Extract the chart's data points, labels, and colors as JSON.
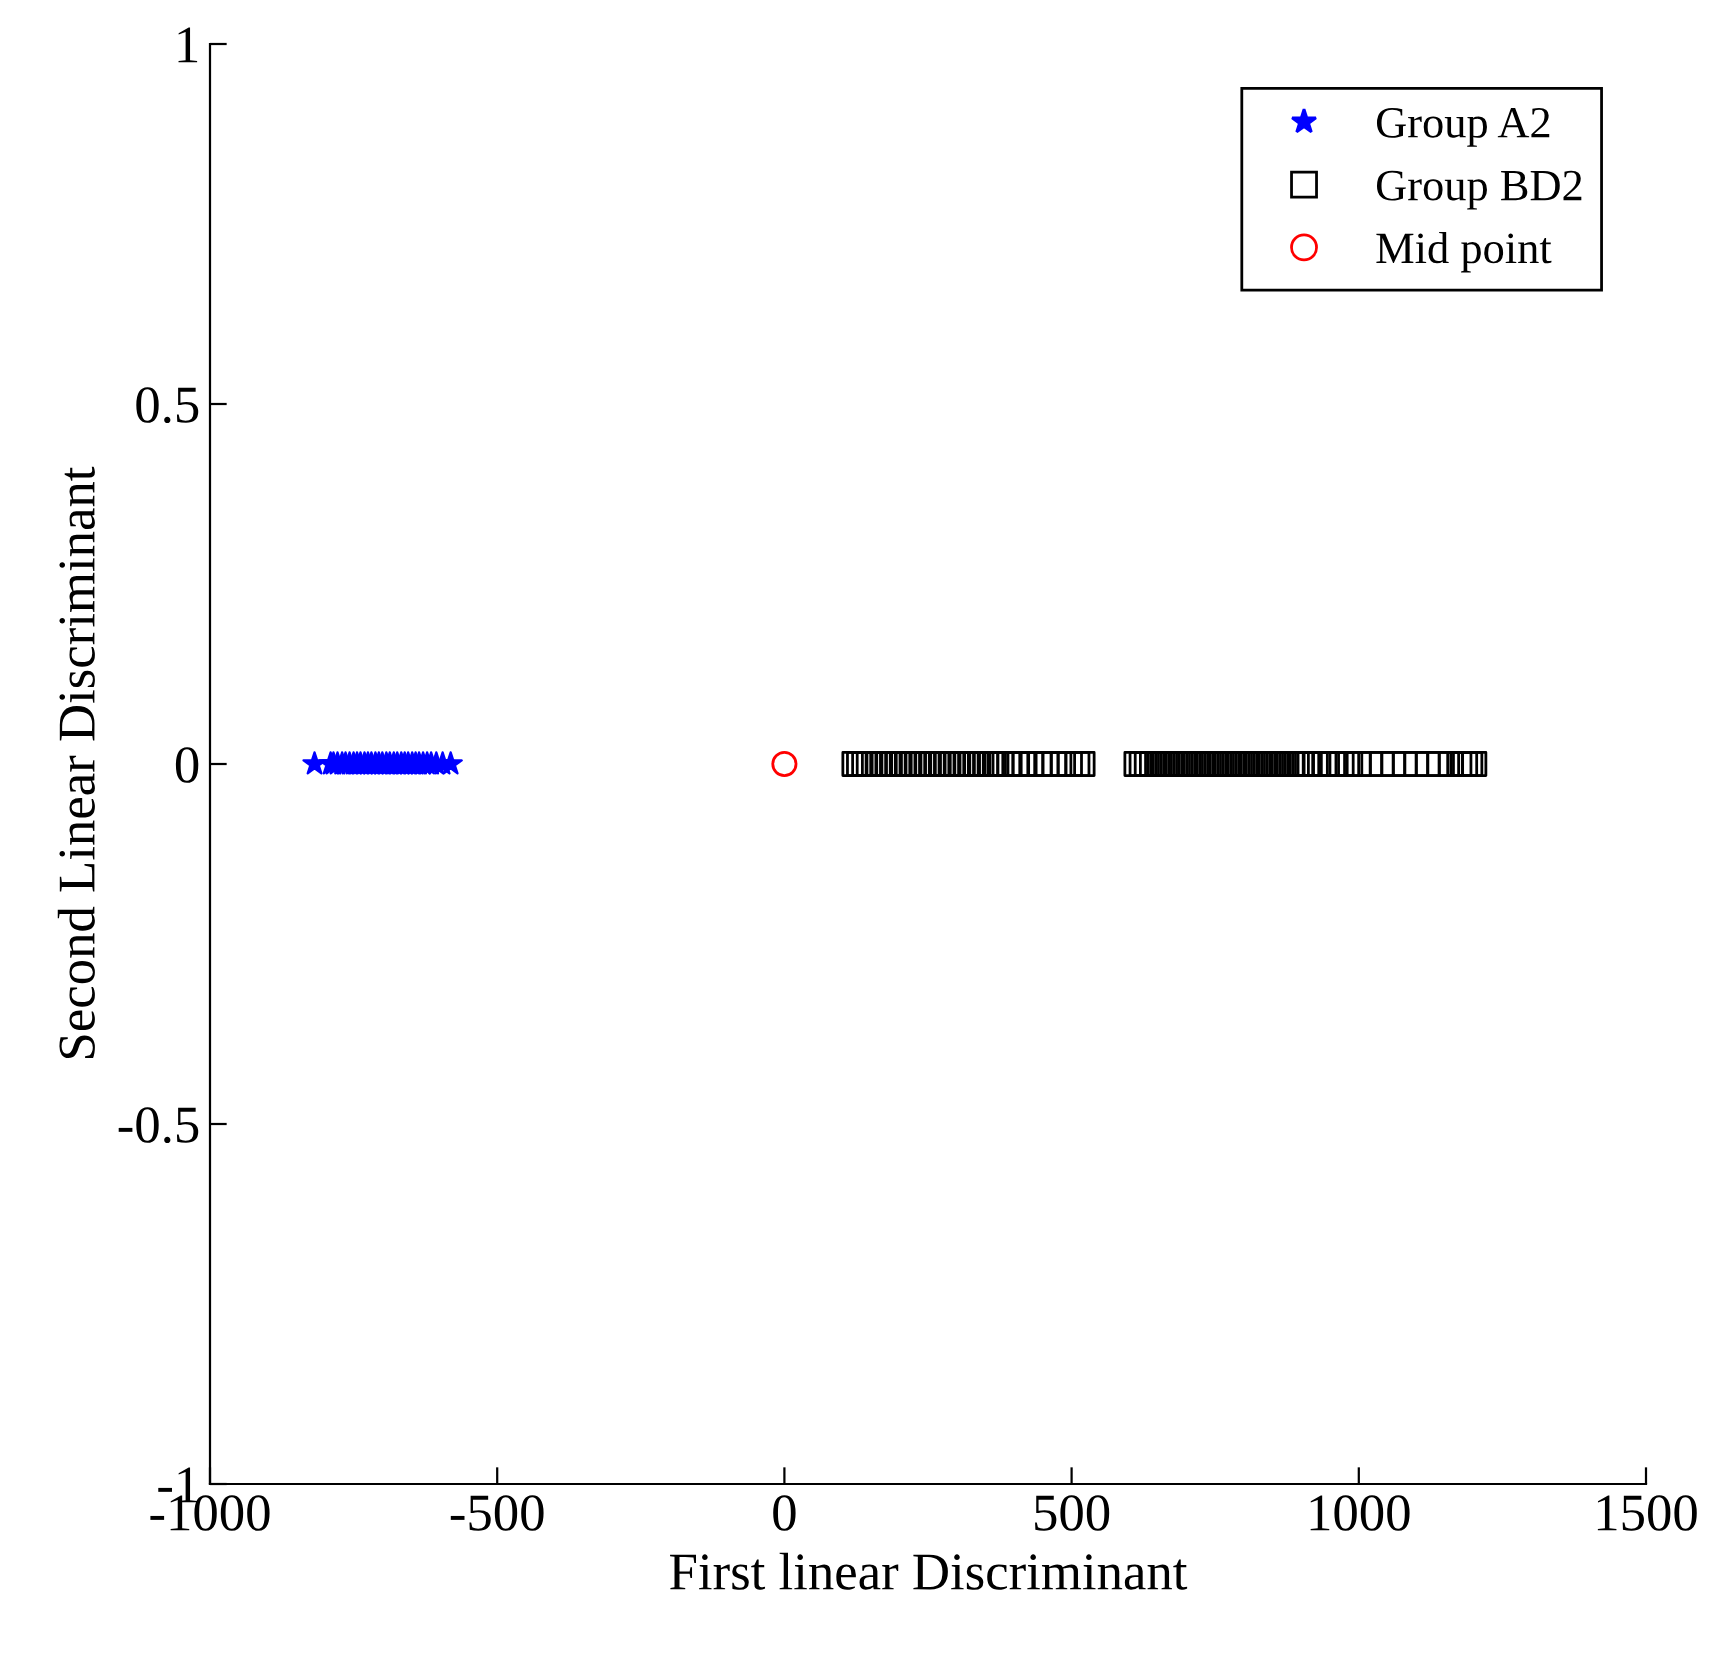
{
  "chart_data": {
    "type": "scatter",
    "xlabel": "First linear Discriminant",
    "ylabel": "Second Linear Discriminant",
    "xlim": [
      -1000,
      1500
    ],
    "xticks": [
      -1000,
      -500,
      0,
      500,
      1000,
      1500
    ],
    "ylim": [
      -1,
      1
    ],
    "yticks": [
      -1,
      -0.5,
      0,
      0.5,
      1
    ],
    "grid": false,
    "legend": "top right",
    "series": [
      {
        "name": "Group A2",
        "color": "#0000ff",
        "marker": "star",
        "x": [
          -818,
          -790,
          -785,
          -778,
          -770,
          -764,
          -757,
          -750,
          -744,
          -738,
          -731,
          -725,
          -719,
          -712,
          -706,
          -700,
          -693,
          -687,
          -680,
          -674,
          -667,
          -661,
          -655,
          -648,
          -642,
          -636,
          -629,
          -622,
          -615,
          -606,
          -595,
          -581
        ],
        "values": [
          0,
          0,
          0,
          0,
          0,
          0,
          0,
          0,
          0,
          0,
          0,
          0,
          0,
          0,
          0,
          0,
          0,
          0,
          0,
          0,
          0,
          0,
          0,
          0,
          0,
          0,
          0,
          0,
          0,
          0,
          0,
          0
        ]
      },
      {
        "name": "Group BD2",
        "color": "#000000",
        "marker": "square",
        "x": [
          122,
          130,
          139,
          147,
          156,
          164,
          173,
          181,
          190,
          198,
          207,
          215,
          224,
          232,
          241,
          249,
          258,
          266,
          275,
          283,
          292,
          300,
          309,
          317,
          326,
          334,
          343,
          351,
          360,
          369,
          378,
          392,
          405,
          418,
          430,
          444,
          456,
          470,
          485,
          497,
          510,
          519,
          613,
          622,
          631,
          640,
          649,
          658,
          667,
          676,
          685,
          694,
          703,
          712,
          721,
          730,
          739,
          748,
          757,
          766,
          775,
          784,
          793,
          802,
          811,
          820,
          829,
          838,
          847,
          856,
          865,
          874,
          883,
          892,
          901,
          910,
          925,
          940,
          955,
          970,
          985,
          1000,
          1020,
          1040,
          1060,
          1080,
          1100,
          1120,
          1140,
          1160,
          1175,
          1185,
          1194,
          1201
        ],
        "values": [
          0,
          0,
          0,
          0,
          0,
          0,
          0,
          0,
          0,
          0,
          0,
          0,
          0,
          0,
          0,
          0,
          0,
          0,
          0,
          0,
          0,
          0,
          0,
          0,
          0,
          0,
          0,
          0,
          0,
          0,
          0,
          0,
          0,
          0,
          0,
          0,
          0,
          0,
          0,
          0,
          0,
          0,
          0,
          0,
          0,
          0,
          0,
          0,
          0,
          0,
          0,
          0,
          0,
          0,
          0,
          0,
          0,
          0,
          0,
          0,
          0,
          0,
          0,
          0,
          0,
          0,
          0,
          0,
          0,
          0,
          0,
          0,
          0,
          0,
          0,
          0,
          0,
          0,
          0,
          0,
          0,
          0,
          0,
          0,
          0,
          0,
          0,
          0,
          0,
          0,
          0,
          0,
          0,
          0
        ]
      },
      {
        "name": "Mid point",
        "color": "#ff0000",
        "marker": "circle",
        "x": [
          0
        ],
        "values": [
          0
        ]
      }
    ]
  }
}
